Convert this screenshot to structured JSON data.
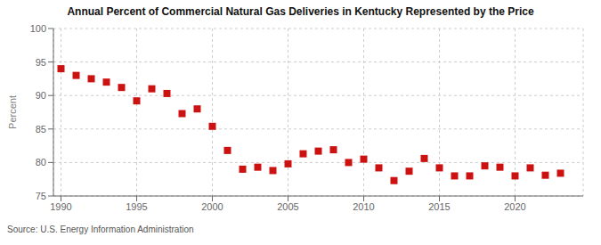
{
  "chart_data": {
    "type": "scatter",
    "title": "Annual Percent of Commercial Natural Gas Deliveries in Kentucky Represented by the Price",
    "ylabel": "Percent",
    "annotations": [
      "Source: U.S. Energy Information Administration"
    ],
    "x": [
      1990,
      1991,
      1992,
      1993,
      1994,
      1995,
      1996,
      1997,
      1998,
      1999,
      2000,
      2001,
      2002,
      2003,
      2004,
      2005,
      2006,
      2007,
      2008,
      2009,
      2010,
      2011,
      2012,
      2013,
      2014,
      2015,
      2016,
      2017,
      2018,
      2019,
      2020,
      2021,
      2022,
      2023
    ],
    "values": [
      94.0,
      93.0,
      92.5,
      92.0,
      91.2,
      89.2,
      91.0,
      90.3,
      87.3,
      88.0,
      85.4,
      81.8,
      79.0,
      79.3,
      78.8,
      79.8,
      81.3,
      81.7,
      81.9,
      80.0,
      80.5,
      79.2,
      77.3,
      78.7,
      80.6,
      79.2,
      78.0,
      78.0,
      79.5,
      79.3,
      78.0,
      79.2,
      78.1,
      78.4
    ],
    "color": "#cc1111",
    "marker": "square",
    "xlim": [
      1989.5,
      2024.5
    ],
    "ylim": [
      75,
      100
    ],
    "xticks": [
      1990,
      1995,
      2000,
      2005,
      2010,
      2015,
      2020
    ],
    "yticks": [
      75,
      80,
      85,
      90,
      95,
      100
    ],
    "grid": true
  }
}
